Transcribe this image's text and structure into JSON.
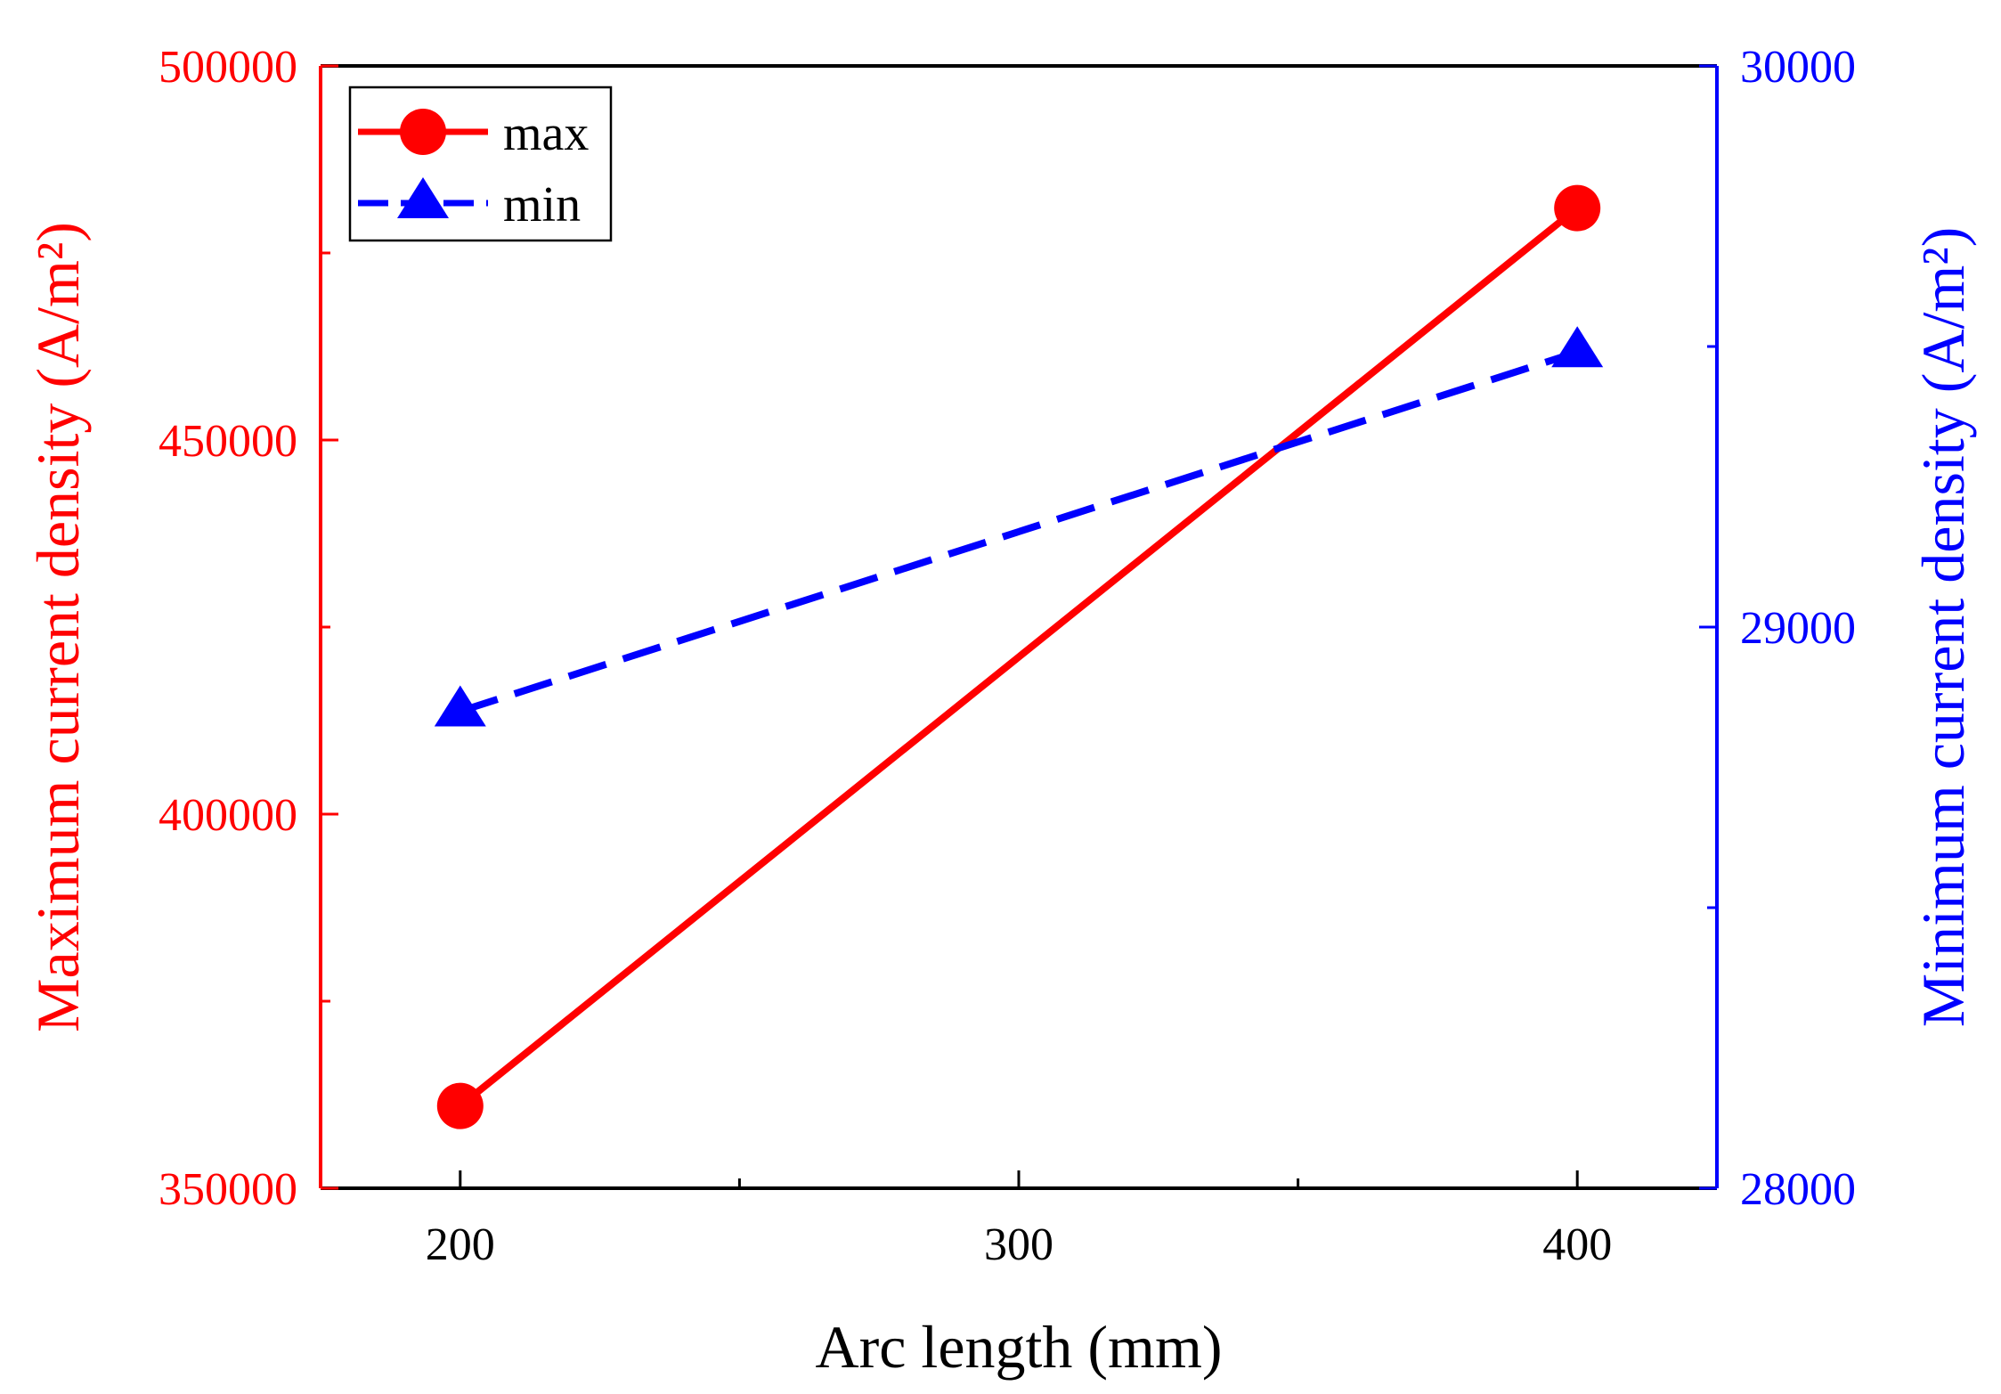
{
  "chart_data": {
    "type": "line",
    "title": "",
    "xlabel": "Arc length (mm)",
    "x": [
      200,
      400
    ],
    "xlim": [
      175,
      425
    ],
    "xticks": [
      200,
      300,
      400
    ],
    "xtick_labels": [
      "200",
      "300",
      "400"
    ],
    "xminor_ticks": [
      250,
      350
    ],
    "ylabel_left": "Maximum current density (A/m²)",
    "ylim_left": [
      350000,
      500000
    ],
    "yticks_left": [
      350000,
      400000,
      450000,
      500000
    ],
    "ytick_labels_left": [
      "350000",
      "400000",
      "450000",
      "500000"
    ],
    "yminor_ticks_left": [
      375000,
      425000,
      475000
    ],
    "ylabel_right": "Minimum current density (A/m²)",
    "ylim_right": [
      28000,
      30000
    ],
    "yticks_right": [
      28000,
      29000,
      30000
    ],
    "ytick_labels_right": [
      "28000",
      "29000",
      "30000"
    ],
    "yminor_ticks_right": [
      28500,
      29500
    ],
    "grid": false,
    "legend_position": "top-left",
    "series": [
      {
        "name": "max",
        "axis": "left",
        "values": [
          361000,
          481000
        ],
        "color": "#ff0000",
        "line_style": "solid",
        "marker": "circle"
      },
      {
        "name": "min",
        "axis": "right",
        "values": [
          28850,
          29490
        ],
        "color": "#0000ff",
        "line_style": "dashed",
        "marker": "triangle"
      }
    ],
    "colors": {
      "left_axis": "#ff0000",
      "right_axis": "#0000ff",
      "frame": "#000000"
    }
  }
}
